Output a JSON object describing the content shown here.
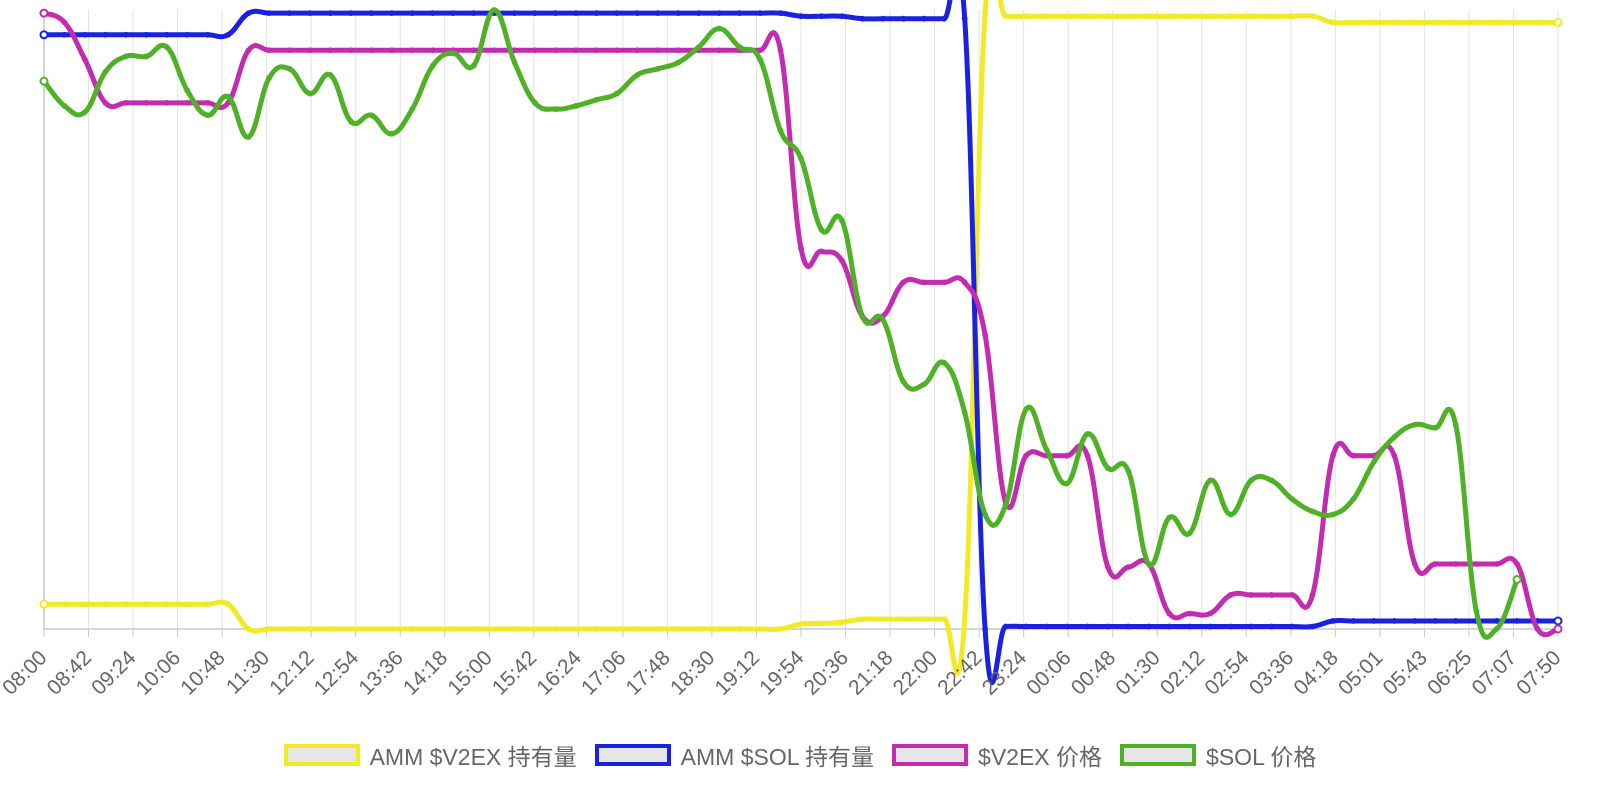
{
  "chart_data": {
    "type": "line",
    "title": "",
    "xlabel": "",
    "ylabel": "",
    "grid": "vertical",
    "legend_position": "bottom",
    "tick_labels": [
      "08:00",
      "08:42",
      "09:24",
      "10:06",
      "10:48",
      "11:30",
      "12:12",
      "12:54",
      "13:36",
      "14:18",
      "15:00",
      "15:42",
      "16:24",
      "17:06",
      "17:48",
      "18:30",
      "19:12",
      "19:54",
      "20:36",
      "21:18",
      "22:00",
      "22:42",
      "23:24",
      "00:06",
      "00:48",
      "01:30",
      "02:12",
      "02:54",
      "03:36",
      "04:18",
      "05:01",
      "05:43",
      "06:25",
      "07:07",
      "07:50"
    ],
    "points_per_tick": 2,
    "y_axis_visible": false,
    "ylim": [
      0,
      100
    ],
    "series": [
      {
        "name": "AMM $V2EX 持有量",
        "color": "#f2ea26",
        "values": [
          4,
          4,
          4,
          4,
          4,
          4,
          4,
          4,
          4,
          4,
          0,
          0,
          0,
          0,
          0,
          0,
          0,
          0,
          0,
          0,
          0,
          0,
          0,
          0,
          0,
          0,
          0,
          0,
          0,
          0,
          0,
          0,
          0,
          0,
          0,
          0,
          0,
          0.8,
          0.9,
          1.1,
          1.6,
          1.6,
          1.6,
          1.6,
          1.6,
          1.6,
          99.5,
          99,
          99,
          99,
          99,
          99,
          99,
          99,
          99,
          99,
          99,
          99,
          99,
          99,
          99,
          99,
          99,
          98,
          98,
          98,
          98,
          98,
          98,
          98,
          98,
          98,
          98,
          98,
          98
        ]
      },
      {
        "name": "AMM $SOL 持有量",
        "color": "#1a22e0",
        "values": [
          96,
          96,
          96,
          96,
          96,
          96,
          96,
          96,
          96,
          96,
          99.5,
          99.5,
          99.5,
          99.5,
          99.5,
          99.5,
          99.5,
          99.5,
          99.5,
          99.5,
          99.5,
          99.5,
          99.5,
          99.5,
          99.5,
          99.5,
          99.5,
          99.5,
          99.5,
          99.5,
          99.5,
          99.5,
          99.5,
          99.5,
          99.5,
          99.5,
          99.5,
          99,
          99,
          99,
          98.6,
          98.6,
          98.6,
          98.6,
          98.6,
          98.6,
          0,
          0.4,
          0.4,
          0.4,
          0.4,
          0.4,
          0.4,
          0.4,
          0.4,
          0.4,
          0.4,
          0.4,
          0.4,
          0.4,
          0.4,
          0.4,
          0.4,
          1.3,
          1.3,
          1.3,
          1.3,
          1.3,
          1.3,
          1.3,
          1.3,
          1.3,
          1.3,
          1.3,
          1.3
        ]
      },
      {
        "name": "$V2EX 价格",
        "color": "#c32bb0",
        "values": [
          99.5,
          98,
          92,
          85,
          85,
          85,
          85,
          85,
          85,
          85,
          93.5,
          93.5,
          93.5,
          93.5,
          93.5,
          93.5,
          93.5,
          93.5,
          93.5,
          93.5,
          93.5,
          93.5,
          93.5,
          93.5,
          93.5,
          93.5,
          93.5,
          93.5,
          93.5,
          93.5,
          93.5,
          93.5,
          93.5,
          93.5,
          93.5,
          93.5,
          93.5,
          61.5,
          61,
          59.5,
          50.5,
          50.5,
          56,
          56,
          56,
          56,
          47.5,
          20.5,
          28,
          28,
          28,
          28,
          10,
          10,
          10.5,
          2.5,
          2.5,
          2.5,
          5.5,
          5.5,
          5.5,
          5.5,
          5.5,
          28,
          28,
          28,
          28,
          10.5,
          10.5,
          10.5,
          10.5,
          10.5,
          10.5,
          0,
          0
        ]
      },
      {
        "name": "$SOL 价格",
        "color": "#4fb126",
        "values": [
          88.5,
          84.5,
          83.5,
          90,
          92.5,
          92.5,
          94,
          87,
          83,
          86,
          79.5,
          89,
          90.5,
          86.5,
          89.5,
          82,
          83,
          80,
          84,
          91,
          93,
          91,
          100,
          91.5,
          85,
          84,
          84.5,
          85.5,
          86.5,
          89.5,
          90.5,
          91.5,
          94,
          97,
          94,
          92,
          80.5,
          76,
          64.5,
          66,
          50.5,
          50,
          40,
          39.5,
          43,
          35,
          18.5,
          20,
          35.5,
          29,
          23.5,
          31.5,
          26,
          25.5,
          10.5,
          18,
          15.5,
          24,
          18.5,
          24,
          24,
          21,
          19,
          18.5,
          21,
          27,
          31,
          33,
          32.5,
          33,
          3,
          0,
          8
        ]
      }
    ]
  }
}
